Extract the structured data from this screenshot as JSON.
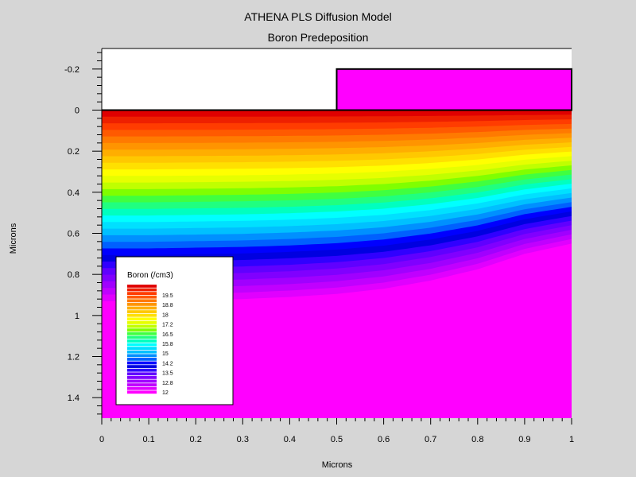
{
  "chart_data": {
    "type": "heatmap",
    "title": "ATHENA PLS Diffusion Model",
    "subtitle": "Boron Predeposition",
    "xlabel": "Microns",
    "ylabel": "Microns",
    "xlim": [
      0,
      1
    ],
    "ylim": [
      -0.3,
      1.5
    ],
    "y_inverted": true,
    "x_ticks": [
      "0",
      "0.1",
      "0.2",
      "0.3",
      "0.4",
      "0.5",
      "0.6",
      "0.7",
      "0.8",
      "0.9",
      "1"
    ],
    "y_ticks": [
      "-0.2",
      "0",
      "0.2",
      "0.4",
      "0.6",
      "0.8",
      "1",
      "1.2",
      "1.4"
    ],
    "x_tick_values": [
      0,
      0.1,
      0.2,
      0.3,
      0.4,
      0.5,
      0.6,
      0.7,
      0.8,
      0.9,
      1
    ],
    "y_tick_values": [
      -0.2,
      0,
      0.2,
      0.4,
      0.6,
      0.8,
      1,
      1.2,
      1.4
    ],
    "mask": {
      "x_range": [
        0.5,
        1
      ],
      "y_range": [
        -0.2,
        0
      ],
      "color": "#ff00ff"
    },
    "contour_edge_depth": [
      {
        "x": 0.0,
        "y": 0.93
      },
      {
        "x": 0.1,
        "y": 0.93
      },
      {
        "x": 0.2,
        "y": 0.925
      },
      {
        "x": 0.3,
        "y": 0.92
      },
      {
        "x": 0.4,
        "y": 0.91
      },
      {
        "x": 0.5,
        "y": 0.895
      },
      {
        "x": 0.6,
        "y": 0.87
      },
      {
        "x": 0.7,
        "y": 0.83
      },
      {
        "x": 0.8,
        "y": 0.775
      },
      {
        "x": 0.9,
        "y": 0.7
      },
      {
        "x": 1.0,
        "y": 0.65
      }
    ],
    "legend": {
      "title": "Boron (/cm3)",
      "placement": "bottom-left",
      "labels": [
        "19.5",
        "18.8",
        "18",
        "17.2",
        "16.5",
        "15.8",
        "15",
        "14.2",
        "13.5",
        "12.8",
        "12"
      ],
      "colors": [
        "#e00000",
        "#ee2000",
        "#ff3c00",
        "#ff5a00",
        "#ff7a00",
        "#ff9400",
        "#ffae00",
        "#ffc800",
        "#ffe000",
        "#ffff00",
        "#e6ff00",
        "#c0ff00",
        "#80ff00",
        "#40ff40",
        "#20ff80",
        "#00ffbf",
        "#00ffff",
        "#00e0ff",
        "#00c0ff",
        "#0090ff",
        "#0060ff",
        "#0000ff",
        "#0000e0",
        "#3000ff",
        "#6000ff",
        "#8000ff",
        "#a000ff",
        "#c000ff",
        "#e000ff",
        "#ff00ff"
      ]
    }
  }
}
